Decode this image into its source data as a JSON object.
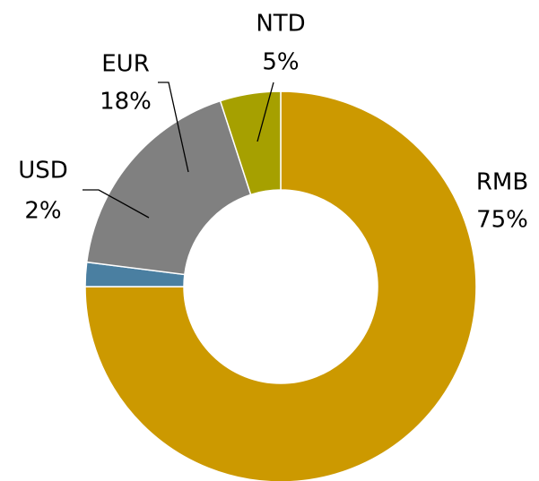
{
  "chart_data": {
    "type": "donut",
    "categories": [
      "RMB",
      "USD",
      "EUR",
      "NTD"
    ],
    "values": [
      75,
      2,
      18,
      5
    ],
    "value_labels": [
      "75%",
      "2%",
      "18%",
      "5%"
    ],
    "colors": [
      "#cc9900",
      "#4a7fa1",
      "#808080",
      "#a6a000"
    ]
  }
}
